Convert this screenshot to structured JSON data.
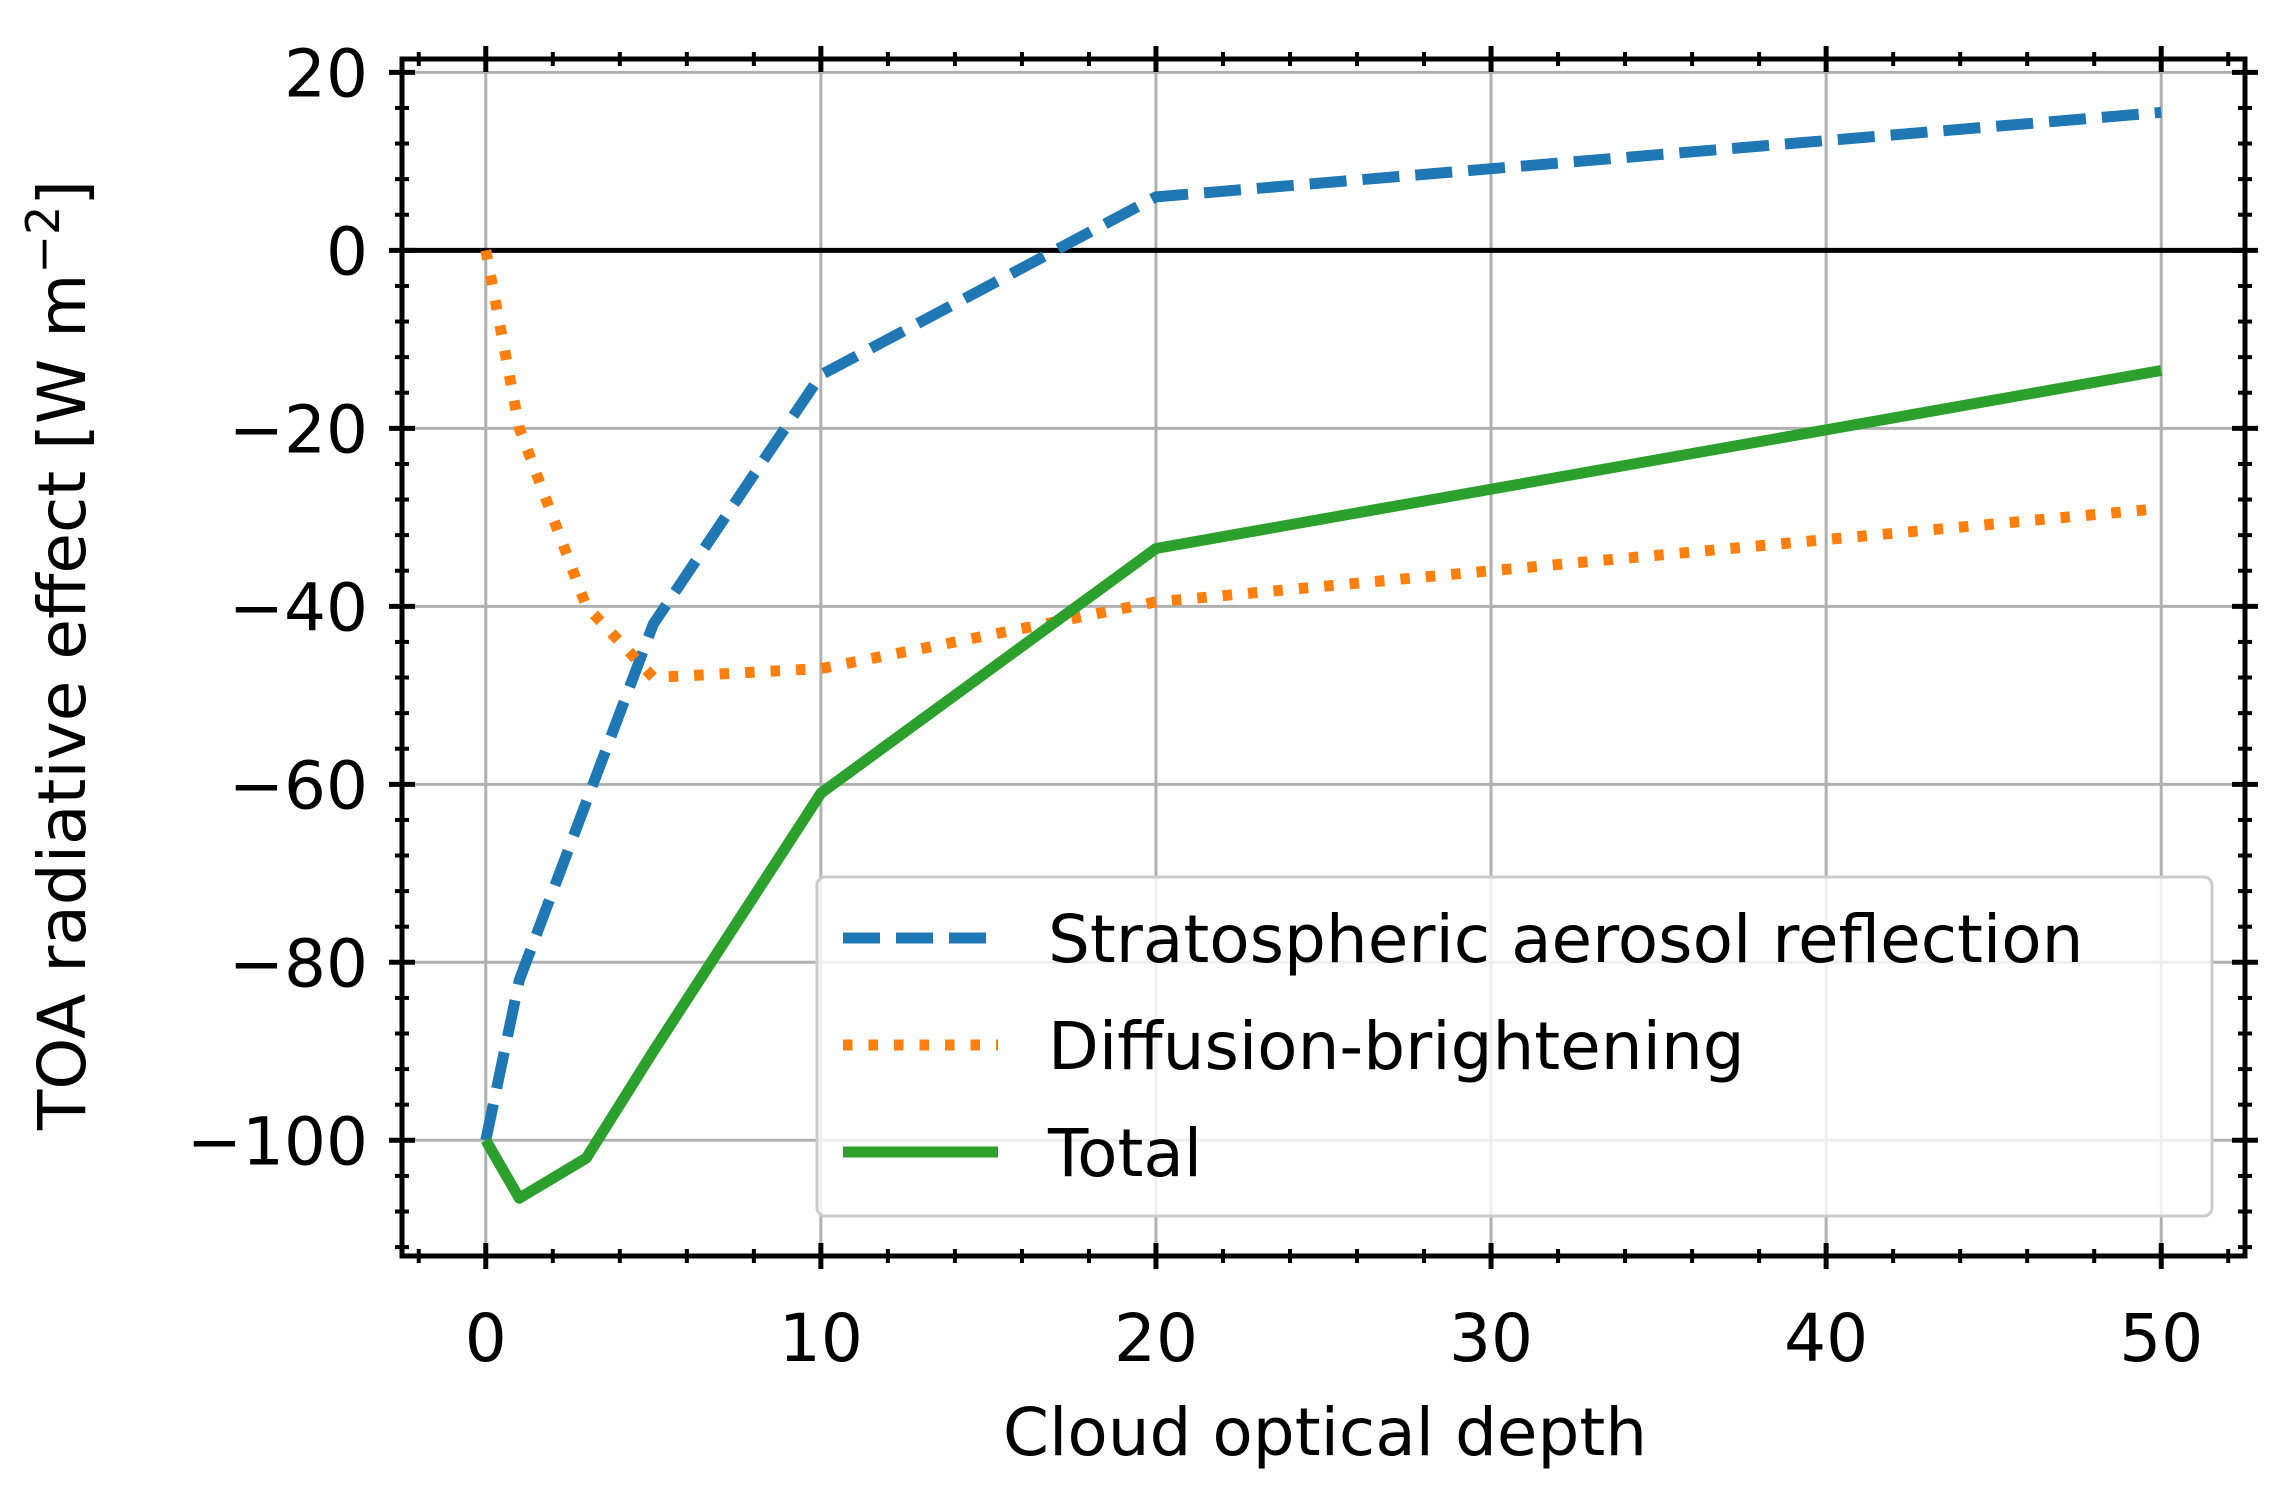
{
  "chart_data": {
    "type": "line",
    "xlabel": "Cloud optical depth",
    "ylabel": "TOA radiative effect [W m",
    "ylabel_exponent": "−2",
    "ylabel_close": "]",
    "xlim": [
      -2.5,
      52.5
    ],
    "ylim": [
      -113,
      21.5
    ],
    "xticks": [
      0,
      10,
      20,
      30,
      40,
      50
    ],
    "yticks": [
      20,
      0,
      -20,
      -40,
      -60,
      -80,
      -100
    ],
    "xtick_labels": [
      "0",
      "10",
      "20",
      "30",
      "40",
      "50"
    ],
    "ytick_labels": [
      "20",
      "0",
      "−20",
      "−40",
      "−60",
      "−80",
      "−100"
    ],
    "grid": true,
    "zero_line": true,
    "legend_position": "lower-right",
    "series": [
      {
        "name": "Stratospheric aerosol reflection",
        "color": "#1f77b4",
        "style": "dashed",
        "x": [
          0,
          1,
          3,
          5,
          10,
          20,
          50
        ],
        "y": [
          -100,
          -82,
          -62,
          -42,
          -14,
          6,
          15.5
        ]
      },
      {
        "name": "Diffusion-brightening",
        "color": "#ff7f0e",
        "style": "dotted",
        "x": [
          0,
          1,
          3,
          5,
          10,
          20,
          50
        ],
        "y": [
          0,
          -20,
          -40,
          -48,
          -47,
          -39.5,
          -29
        ]
      },
      {
        "name": "Total",
        "color": "#2ca02c",
        "style": "solid",
        "x": [
          0,
          1,
          3,
          5,
          10,
          20,
          50
        ],
        "y": [
          -100,
          -106.5,
          -102,
          -90,
          -61,
          -33.5,
          -13.5
        ]
      }
    ]
  }
}
